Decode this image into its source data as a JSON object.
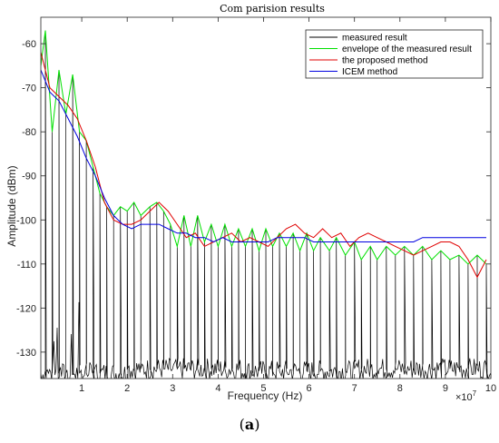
{
  "caption_open": "(",
  "caption_letter": "a",
  "caption_close": ")",
  "chart_data": {
    "type": "line",
    "title": "Com parision results",
    "xlabel": "Frequency  (Hz)",
    "ylabel": "Amplitude  (dBm)",
    "x_exponent_label": "×10",
    "x_exponent_power": "7",
    "xlim": [
      0.1,
      10
    ],
    "ylim": [
      -136,
      -54
    ],
    "xticks": [
      1,
      2,
      3,
      4,
      5,
      6,
      7,
      8,
      9,
      10
    ],
    "yticks": [
      -130,
      -120,
      -110,
      -100,
      -90,
      -80,
      -70,
      -60
    ],
    "legend_position": "top-right",
    "grid": false,
    "colors": {
      "measured": "#000000",
      "envelope": "#00e000",
      "proposed": "#e00000",
      "icem": "#0000e0"
    },
    "series": [
      {
        "name": "measured result",
        "noise_floor": -133,
        "peaks": [
          [
            0.2,
            -57
          ],
          [
            0.35,
            -80
          ],
          [
            0.5,
            -66
          ],
          [
            0.65,
            -76
          ],
          [
            0.8,
            -67
          ],
          [
            0.95,
            -80
          ],
          [
            1.1,
            -82
          ],
          [
            1.25,
            -88
          ],
          [
            1.4,
            -94
          ],
          [
            1.55,
            -97
          ],
          [
            1.7,
            -99
          ],
          [
            1.85,
            -97
          ],
          [
            2.0,
            -98
          ],
          [
            2.15,
            -96
          ],
          [
            2.3,
            -99
          ],
          [
            2.5,
            -97
          ],
          [
            2.65,
            -96
          ],
          [
            2.8,
            -98
          ],
          [
            2.95,
            -101
          ],
          [
            3.1,
            -106
          ],
          [
            3.25,
            -99
          ],
          [
            3.4,
            -106
          ],
          [
            3.55,
            -99
          ],
          [
            3.7,
            -105
          ],
          [
            3.85,
            -101
          ],
          [
            4.0,
            -106
          ],
          [
            4.15,
            -101
          ],
          [
            4.3,
            -106
          ],
          [
            4.45,
            -102
          ],
          [
            4.6,
            -106
          ],
          [
            4.75,
            -102
          ],
          [
            4.9,
            -107
          ],
          [
            5.05,
            -102
          ],
          [
            5.2,
            -106
          ],
          [
            5.35,
            -103
          ],
          [
            5.5,
            -106
          ],
          [
            5.65,
            -103
          ],
          [
            5.8,
            -107
          ],
          [
            5.95,
            -103
          ],
          [
            6.1,
            -107
          ],
          [
            6.25,
            -104
          ],
          [
            6.45,
            -107
          ],
          [
            6.6,
            -104
          ],
          [
            6.8,
            -108
          ],
          [
            7.0,
            -105
          ],
          [
            7.15,
            -109
          ],
          [
            7.35,
            -106
          ],
          [
            7.5,
            -109
          ],
          [
            7.7,
            -106
          ],
          [
            7.9,
            -108
          ],
          [
            8.1,
            -106
          ],
          [
            8.3,
            -108
          ],
          [
            8.5,
            -106
          ],
          [
            8.7,
            -109
          ],
          [
            8.9,
            -107
          ],
          [
            9.1,
            -109
          ],
          [
            9.3,
            -108
          ],
          [
            9.5,
            -110
          ],
          [
            9.7,
            -108
          ],
          [
            9.9,
            -110
          ]
        ]
      },
      {
        "name": "envelope of the measured result",
        "x": [
          0.1,
          0.2,
          0.35,
          0.5,
          0.65,
          0.8,
          0.95,
          1.1,
          1.25,
          1.4,
          1.55,
          1.7,
          1.85,
          2.0,
          2.15,
          2.3,
          2.5,
          2.65,
          2.8,
          2.95,
          3.1,
          3.25,
          3.4,
          3.55,
          3.7,
          3.85,
          4.0,
          4.15,
          4.3,
          4.45,
          4.6,
          4.75,
          4.9,
          5.05,
          5.2,
          5.35,
          5.5,
          5.65,
          5.8,
          5.95,
          6.1,
          6.25,
          6.45,
          6.6,
          6.8,
          7.0,
          7.15,
          7.35,
          7.5,
          7.7,
          7.9,
          8.1,
          8.3,
          8.5,
          8.7,
          8.9,
          9.1,
          9.3,
          9.5,
          9.7,
          9.9
        ],
        "y": [
          -65,
          -57,
          -80,
          -66,
          -76,
          -67,
          -80,
          -82,
          -88,
          -94,
          -97,
          -99,
          -97,
          -98,
          -96,
          -99,
          -97,
          -96,
          -98,
          -101,
          -106,
          -99,
          -106,
          -99,
          -105,
          -101,
          -106,
          -101,
          -106,
          -102,
          -106,
          -102,
          -107,
          -102,
          -106,
          -103,
          -106,
          -103,
          -107,
          -103,
          -107,
          -104,
          -107,
          -104,
          -108,
          -105,
          -109,
          -106,
          -109,
          -106,
          -108,
          -106,
          -108,
          -106,
          -109,
          -107,
          -109,
          -108,
          -110,
          -108,
          -110
        ]
      },
      {
        "name": "the proposed method",
        "x": [
          0.1,
          0.3,
          0.5,
          0.7,
          0.9,
          1.1,
          1.3,
          1.5,
          1.7,
          1.9,
          2.1,
          2.3,
          2.5,
          2.7,
          2.9,
          3.1,
          3.3,
          3.5,
          3.7,
          3.9,
          4.1,
          4.3,
          4.5,
          4.7,
          4.9,
          5.1,
          5.3,
          5.5,
          5.7,
          5.9,
          6.1,
          6.3,
          6.5,
          6.7,
          6.9,
          7.1,
          7.3,
          7.5,
          7.7,
          7.9,
          8.1,
          8.3,
          8.5,
          8.7,
          8.9,
          9.1,
          9.3,
          9.5,
          9.7,
          9.9
        ],
        "y": [
          -62,
          -70,
          -72,
          -74,
          -77,
          -82,
          -88,
          -96,
          -100,
          -101,
          -101,
          -100,
          -98,
          -96,
          -98,
          -101,
          -104,
          -103,
          -106,
          -105,
          -104,
          -103,
          -105,
          -104,
          -105,
          -106,
          -104,
          -102,
          -101,
          -103,
          -104,
          -102,
          -104,
          -103,
          -106,
          -104,
          -103,
          -104,
          -105,
          -106,
          -107,
          -108,
          -107,
          -106,
          -105,
          -105,
          -106,
          -109,
          -113,
          -109
        ]
      },
      {
        "name": "ICEM method",
        "x": [
          0.1,
          0.3,
          0.5,
          0.7,
          0.9,
          1.1,
          1.3,
          1.5,
          1.7,
          1.9,
          2.1,
          2.3,
          2.5,
          2.7,
          2.9,
          3.1,
          3.3,
          3.5,
          3.7,
          3.9,
          4.1,
          4.3,
          4.5,
          4.7,
          4.9,
          5.1,
          5.3,
          5.5,
          5.7,
          5.9,
          6.1,
          6.3,
          6.5,
          6.7,
          6.9,
          7.1,
          7.3,
          7.5,
          7.7,
          7.9,
          8.1,
          8.3,
          8.5,
          8.7,
          8.9,
          9.1,
          9.3,
          9.5,
          9.7,
          9.9
        ],
        "y": [
          -66,
          -71,
          -73,
          -77,
          -81,
          -86,
          -90,
          -95,
          -99,
          -101,
          -102,
          -101,
          -101,
          -101,
          -102,
          -103,
          -103,
          -104,
          -104,
          -105,
          -104,
          -105,
          -105,
          -105,
          -105,
          -105,
          -104,
          -104,
          -104,
          -104,
          -105,
          -105,
          -105,
          -105,
          -105,
          -105,
          -105,
          -105,
          -105,
          -105,
          -105,
          -105,
          -104,
          -104,
          -104,
          -104,
          -104,
          -104,
          -104,
          -104
        ]
      }
    ]
  }
}
